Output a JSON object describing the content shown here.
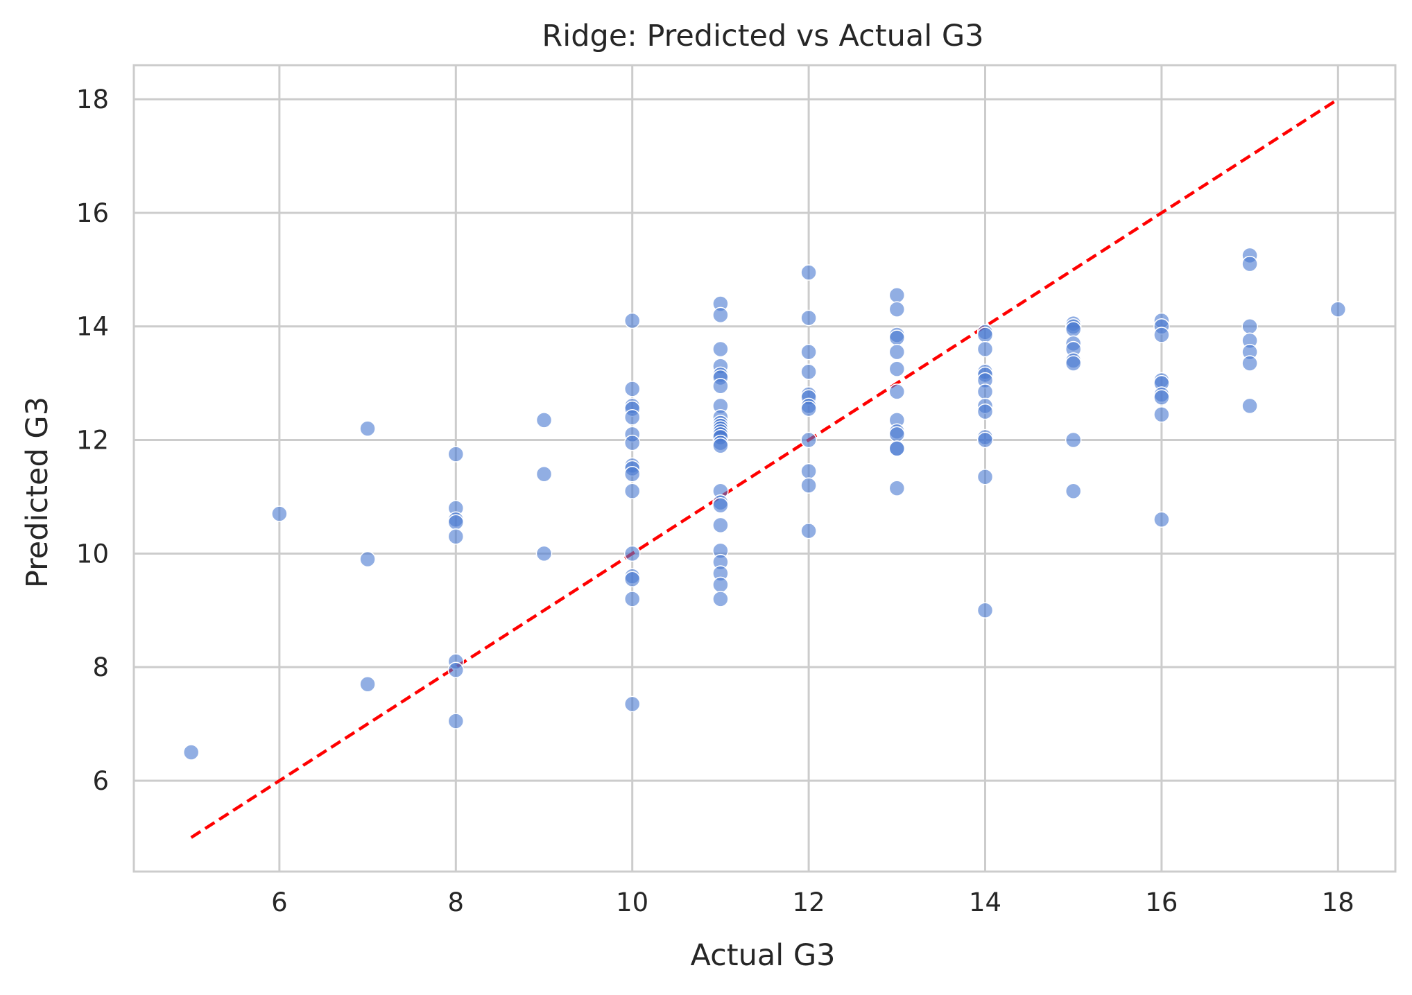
{
  "colors": {
    "point": "#4878d0",
    "reference_line": "#ff0000",
    "grid": "#cccccc",
    "frame": "#cccccc",
    "text": "#262626"
  },
  "chart_data": {
    "type": "scatter",
    "title": "Ridge: Predicted vs Actual G3",
    "xlabel": "Actual G3",
    "ylabel": "Predicted G3",
    "xlim": [
      4.35,
      18.65
    ],
    "ylim": [
      4.4,
      18.6
    ],
    "xticks": [
      6,
      8,
      10,
      12,
      14,
      16,
      18
    ],
    "yticks": [
      6,
      8,
      10,
      12,
      14,
      16,
      18
    ],
    "grid": true,
    "reference_line": {
      "style": "dashed",
      "x": [
        5,
        18
      ],
      "y": [
        5,
        18
      ]
    },
    "points": [
      [
        5,
        6.5
      ],
      [
        6,
        10.7
      ],
      [
        7,
        12.2
      ],
      [
        7,
        9.9
      ],
      [
        7,
        7.7
      ],
      [
        8,
        11.75
      ],
      [
        8,
        10.8
      ],
      [
        8,
        10.6
      ],
      [
        8,
        10.55
      ],
      [
        8,
        10.3
      ],
      [
        8,
        8.1
      ],
      [
        8,
        7.95
      ],
      [
        8,
        7.05
      ],
      [
        9,
        12.35
      ],
      [
        9,
        11.4
      ],
      [
        9,
        10.0
      ],
      [
        10,
        14.1
      ],
      [
        10,
        12.9
      ],
      [
        10,
        12.6
      ],
      [
        10,
        12.55
      ],
      [
        10,
        12.4
      ],
      [
        10,
        12.1
      ],
      [
        10,
        11.95
      ],
      [
        10,
        11.55
      ],
      [
        10,
        11.5
      ],
      [
        10,
        11.4
      ],
      [
        10,
        11.1
      ],
      [
        10,
        10.0
      ],
      [
        10,
        9.6
      ],
      [
        10,
        9.55
      ],
      [
        10,
        9.2
      ],
      [
        10,
        7.35
      ],
      [
        11,
        14.4
      ],
      [
        11,
        14.2
      ],
      [
        11,
        13.6
      ],
      [
        11,
        13.3
      ],
      [
        11,
        13.15
      ],
      [
        11,
        13.1
      ],
      [
        11,
        12.95
      ],
      [
        11,
        12.6
      ],
      [
        11,
        12.4
      ],
      [
        11,
        12.3
      ],
      [
        11,
        12.25
      ],
      [
        11,
        12.2
      ],
      [
        11,
        12.15
      ],
      [
        11,
        12.1
      ],
      [
        11,
        12.05
      ],
      [
        11,
        11.95
      ],
      [
        11,
        11.9
      ],
      [
        11,
        11.1
      ],
      [
        11,
        10.9
      ],
      [
        11,
        10.85
      ],
      [
        11,
        10.5
      ],
      [
        11,
        10.05
      ],
      [
        11,
        9.85
      ],
      [
        11,
        9.65
      ],
      [
        11,
        9.45
      ],
      [
        11,
        9.2
      ],
      [
        12,
        14.95
      ],
      [
        12,
        14.15
      ],
      [
        12,
        13.55
      ],
      [
        12,
        13.2
      ],
      [
        12,
        12.8
      ],
      [
        12,
        12.75
      ],
      [
        12,
        12.6
      ],
      [
        12,
        12.55
      ],
      [
        12,
        12.0
      ],
      [
        12,
        11.45
      ],
      [
        12,
        11.2
      ],
      [
        12,
        10.4
      ],
      [
        13,
        14.55
      ],
      [
        13,
        14.3
      ],
      [
        13,
        13.85
      ],
      [
        13,
        13.8
      ],
      [
        13,
        13.55
      ],
      [
        13,
        13.25
      ],
      [
        13,
        12.85
      ],
      [
        13,
        12.35
      ],
      [
        13,
        12.15
      ],
      [
        13,
        12.1
      ],
      [
        13,
        11.85
      ],
      [
        13,
        11.85
      ],
      [
        13,
        11.15
      ],
      [
        14,
        13.9
      ],
      [
        14,
        13.85
      ],
      [
        14,
        13.6
      ],
      [
        14,
        13.2
      ],
      [
        14,
        13.15
      ],
      [
        14,
        13.05
      ],
      [
        14,
        12.85
      ],
      [
        14,
        12.6
      ],
      [
        14,
        12.5
      ],
      [
        14,
        12.05
      ],
      [
        14,
        12.0
      ],
      [
        14,
        11.35
      ],
      [
        14,
        9.0
      ],
      [
        15,
        14.05
      ],
      [
        15,
        14.0
      ],
      [
        15,
        13.95
      ],
      [
        15,
        13.7
      ],
      [
        15,
        13.6
      ],
      [
        15,
        13.4
      ],
      [
        15,
        13.35
      ],
      [
        15,
        12.0
      ],
      [
        15,
        11.1
      ],
      [
        16,
        14.1
      ],
      [
        16,
        14.0
      ],
      [
        16,
        13.85
      ],
      [
        16,
        13.05
      ],
      [
        16,
        13.0
      ],
      [
        16,
        12.8
      ],
      [
        16,
        12.75
      ],
      [
        16,
        12.45
      ],
      [
        16,
        10.6
      ],
      [
        17,
        15.25
      ],
      [
        17,
        15.1
      ],
      [
        17,
        14.0
      ],
      [
        17,
        13.75
      ],
      [
        17,
        13.55
      ],
      [
        17,
        13.35
      ],
      [
        17,
        12.6
      ],
      [
        18,
        14.3
      ]
    ]
  }
}
